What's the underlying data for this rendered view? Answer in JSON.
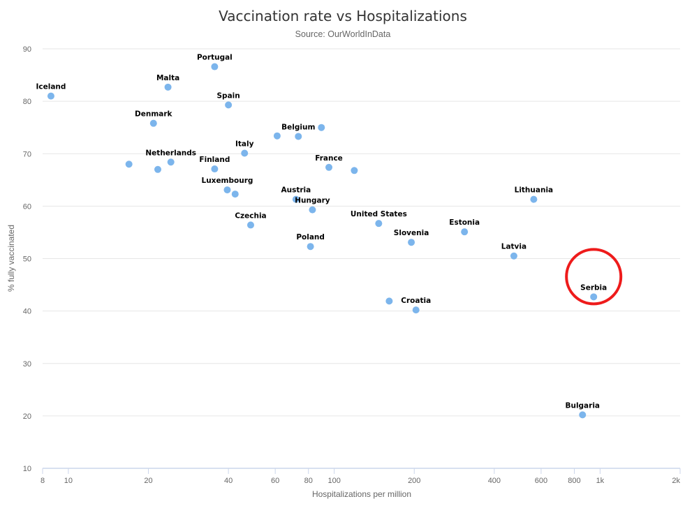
{
  "chart_data": {
    "type": "scatter",
    "title": "Vaccination rate vs Hospitalizations",
    "subtitle": "Source: OurWorldInData",
    "xlabel": "Hospitalizations per million",
    "ylabel": "% fully vaccinated",
    "x_scale": "log",
    "xlim": [
      8,
      2000
    ],
    "ylim": [
      10,
      90
    ],
    "x_ticks": [
      {
        "value": 8,
        "label": "8"
      },
      {
        "value": 10,
        "label": "10"
      },
      {
        "value": 20,
        "label": "20"
      },
      {
        "value": 40,
        "label": "40"
      },
      {
        "value": 60,
        "label": "60"
      },
      {
        "value": 80,
        "label": "80"
      },
      {
        "value": 100,
        "label": "100"
      },
      {
        "value": 200,
        "label": "200"
      },
      {
        "value": 400,
        "label": "400"
      },
      {
        "value": 600,
        "label": "600"
      },
      {
        "value": 800,
        "label": "800"
      },
      {
        "value": 1000,
        "label": "1k"
      },
      {
        "value": 2000,
        "label": "2k"
      }
    ],
    "y_ticks": [
      10,
      20,
      30,
      40,
      50,
      60,
      70,
      80,
      90
    ],
    "grid": true,
    "point_color": "#7cb5ec",
    "highlight_color": "#ee1b1b",
    "points": [
      {
        "label": "Iceland",
        "x": 8.6,
        "y": 81.0
      },
      {
        "label": "Portugal",
        "x": 35.5,
        "y": 86.6
      },
      {
        "label": "Malta",
        "x": 23.7,
        "y": 82.7
      },
      {
        "label": "Spain",
        "x": 40.0,
        "y": 79.3
      },
      {
        "label": "Denmark",
        "x": 20.9,
        "y": 75.8
      },
      {
        "label": "Belgium",
        "x": 73.3,
        "y": 73.3
      },
      {
        "label": "",
        "x": 61.0,
        "y": 73.4
      },
      {
        "label": "",
        "x": 89.5,
        "y": 75.0
      },
      {
        "label": "Italy",
        "x": 46.0,
        "y": 70.1
      },
      {
        "label": "Netherlands",
        "x": 24.3,
        "y": 68.4
      },
      {
        "label": "",
        "x": 16.9,
        "y": 68.0
      },
      {
        "label": "",
        "x": 21.7,
        "y": 67.0
      },
      {
        "label": "Finland",
        "x": 35.5,
        "y": 67.1
      },
      {
        "label": "France",
        "x": 95.5,
        "y": 67.4
      },
      {
        "label": "",
        "x": 119.0,
        "y": 66.8
      },
      {
        "label": "Luxembourg",
        "x": 39.6,
        "y": 63.1
      },
      {
        "label": "",
        "x": 42.4,
        "y": 62.3
      },
      {
        "label": "Austria",
        "x": 71.8,
        "y": 61.3
      },
      {
        "label": "Hungary",
        "x": 82.8,
        "y": 59.3
      },
      {
        "label": "Czechia",
        "x": 48.5,
        "y": 56.4
      },
      {
        "label": "United States",
        "x": 147.0,
        "y": 56.7
      },
      {
        "label": "Poland",
        "x": 81.4,
        "y": 52.3
      },
      {
        "label": "Slovenia",
        "x": 195.0,
        "y": 53.1
      },
      {
        "label": "Estonia",
        "x": 309.0,
        "y": 55.1
      },
      {
        "label": "Lithuania",
        "x": 563.0,
        "y": 61.3
      },
      {
        "label": "Latvia",
        "x": 474.0,
        "y": 50.5
      },
      {
        "label": "Croatia",
        "x": 203.0,
        "y": 40.2
      },
      {
        "label": "",
        "x": 161.0,
        "y": 41.9
      },
      {
        "label": "Serbia",
        "x": 946.0,
        "y": 42.7,
        "highlighted": true
      },
      {
        "label": "Bulgaria",
        "x": 859.0,
        "y": 20.2
      }
    ]
  }
}
